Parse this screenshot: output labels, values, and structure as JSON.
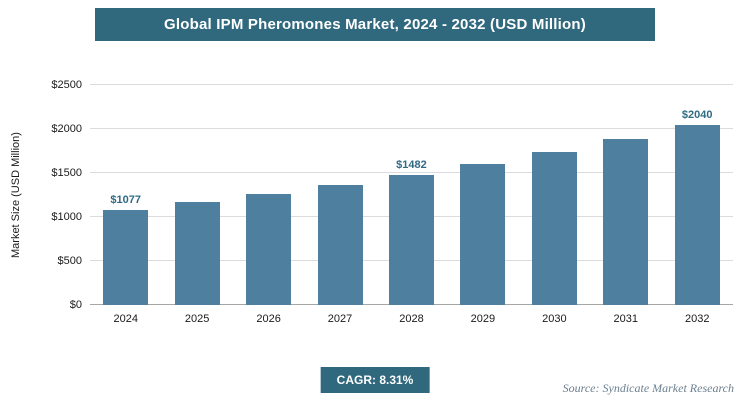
{
  "title": "Global IPM Pheromones Market, 2024 - 2032 (USD Million)",
  "chart_data": {
    "type": "bar",
    "categories": [
      "2024",
      "2025",
      "2026",
      "2027",
      "2028",
      "2029",
      "2030",
      "2031",
      "2032"
    ],
    "values": [
      1077,
      1166,
      1263,
      1368,
      1482,
      1605,
      1738,
      1883,
      2040
    ],
    "labeled_points": {
      "2024": "$1077",
      "2028": "$1482",
      "2032": "$2040"
    },
    "title": "Global IPM Pheromones Market, 2024 - 2032 (USD Million)",
    "xlabel": "",
    "ylabel": "Market Size (USD Million)",
    "ylim": [
      0,
      2500
    ],
    "yticks": [
      {
        "label": "$0",
        "value": 0
      },
      {
        "label": "$500",
        "value": 500
      },
      {
        "label": "$1000",
        "value": 1000
      },
      {
        "label": "$1500",
        "value": 1500
      },
      {
        "label": "$2000",
        "value": 2000
      },
      {
        "label": "$2500",
        "value": 2500
      }
    ],
    "grid": "horizontal",
    "legend": "none"
  },
  "footer": {
    "cagr_label": "CAGR: 8.31%",
    "source": "Source: Syndicate Market Research"
  },
  "colors": {
    "banner_bg": "#30697e",
    "banner_text": "#ffffff",
    "bar_fill": "#4e7f9e",
    "value_label": "#2f6b84",
    "gridline": "#dcdcdc",
    "baseline": "#a6a6a6",
    "source_text": "#6b7f8f"
  }
}
